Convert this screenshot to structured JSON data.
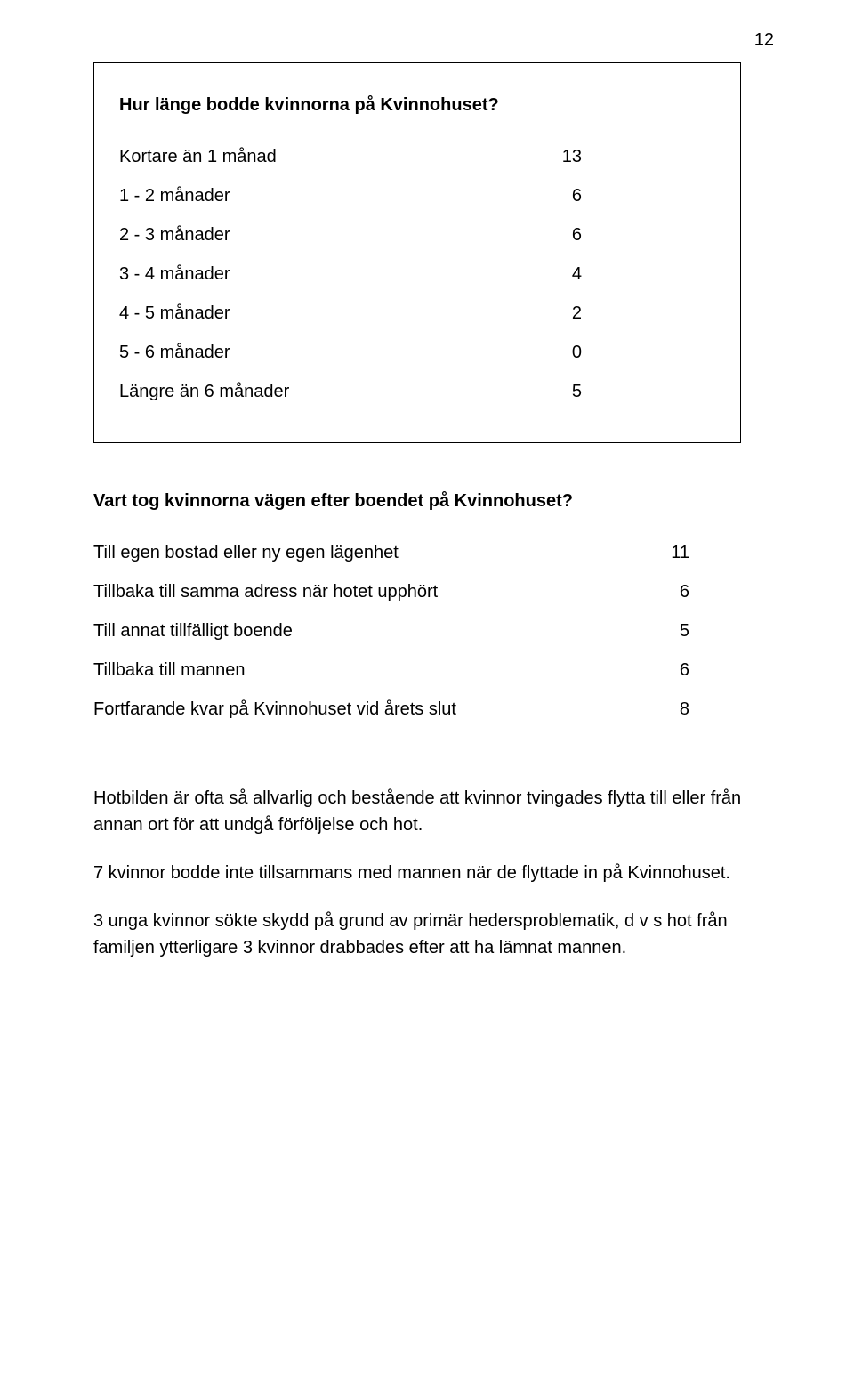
{
  "page_number": "12",
  "box1": {
    "title": "Hur länge bodde kvinnorna på Kvinnohuset?",
    "rows": [
      {
        "label": "Kortare än 1 månad",
        "value": "13"
      },
      {
        "label": "1 - 2 månader",
        "value": "6"
      },
      {
        "label": "2 - 3 månader",
        "value": "6"
      },
      {
        "label": "3 - 4 månader",
        "value": "4"
      },
      {
        "label": "4 - 5 månader",
        "value": "2"
      },
      {
        "label": "5 - 6 månader",
        "value": "0"
      },
      {
        "label": "Längre än 6 månader",
        "value": "5"
      }
    ]
  },
  "section2": {
    "title": "Vart tog kvinnorna vägen efter boendet på Kvinnohuset?",
    "rows": [
      {
        "label": "Till egen bostad eller ny egen lägenhet",
        "value": "11"
      },
      {
        "label": "Tillbaka till samma adress när hotet upphört",
        "value": "6"
      },
      {
        "label": "Till annat tillfälligt boende",
        "value": "5"
      },
      {
        "label": "Tillbaka till mannen",
        "value": "6"
      },
      {
        "label": "Fortfarande kvar på Kvinnohuset vid årets slut",
        "value": "8"
      }
    ]
  },
  "paragraphs": [
    "Hotbilden är ofta så allvarlig och bestående att kvinnor tvingades flytta till eller från annan ort för att undgå förföljelse och hot.",
    "7 kvinnor bodde inte tillsammans med mannen när de flyttade in på Kvinnohuset.",
    "3 unga kvinnor sökte skydd på grund av primär hedersproblematik, d v s hot från familjen ytterligare 3 kvinnor drabbades efter att ha lämnat mannen."
  ]
}
